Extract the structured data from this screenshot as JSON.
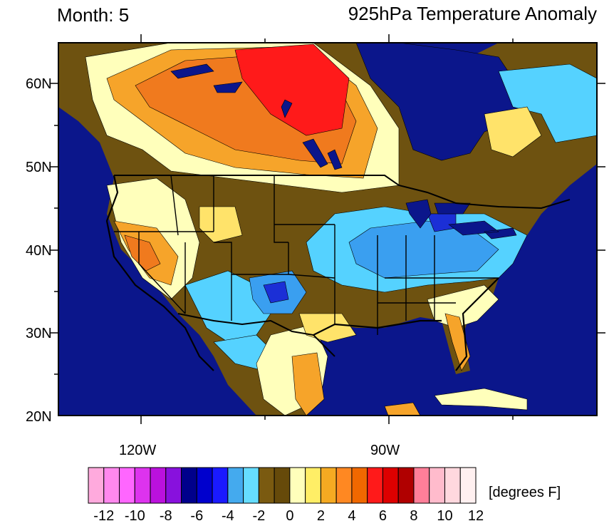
{
  "header": {
    "left_title": "Month: 5",
    "right_title": "925hPa Temperature Anomaly"
  },
  "axes": {
    "lat_labels": [
      "60N",
      "50N",
      "40N",
      "30N",
      "20N"
    ],
    "lon_labels": [
      "120W",
      "90W"
    ]
  },
  "colorbar": {
    "units": "[degrees F]",
    "labels": [
      "-12",
      "-10",
      "-8",
      "-6",
      "-4",
      "-2",
      "0",
      "2",
      "4",
      "6",
      "8",
      "10",
      "12"
    ],
    "colors": [
      "#ffaadd",
      "#ff88ee",
      "#ff66ff",
      "#dd33ee",
      "#bb11dd",
      "#8811dd",
      "#00008b",
      "#0000cd",
      "#1a1aff",
      "#44aaee",
      "#66ddff",
      "#7a5a10",
      "#664a0a",
      "#ffffbb",
      "#ffee66",
      "#f5aa22",
      "#ff8822",
      "#f06800",
      "#ff1a1a",
      "#dd0000",
      "#b00000",
      "#ff7f99",
      "#ffbbcc",
      "#ffd8de",
      "#fff0f0"
    ]
  },
  "colors": {
    "ocean": "#0b168b",
    "brown": "#6e5210",
    "lightblue": "#55d2ff",
    "midblue": "#3a9ff0",
    "deepblue": "#1b2fd6",
    "paleyellow": "#ffffbb",
    "yellow": "#ffe36a",
    "orange": "#f6a42a",
    "darkorange": "#f07a1e",
    "red": "#ff1a1a"
  }
}
